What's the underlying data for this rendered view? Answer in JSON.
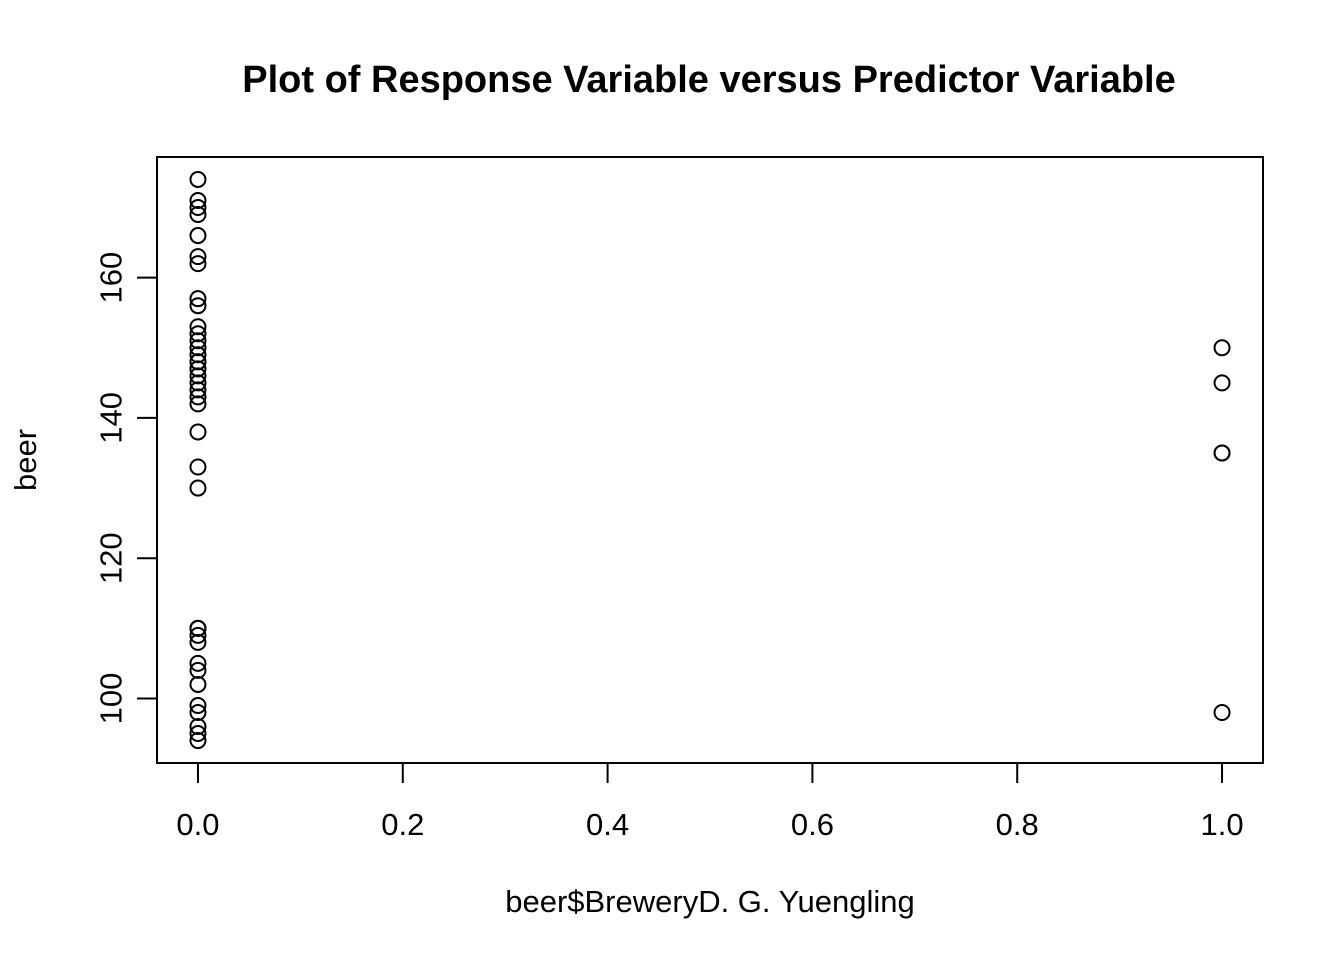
{
  "chart_data": {
    "type": "scatter",
    "title": "Plot of Response Variable versus Predictor Variable",
    "xlabel": "beer$BreweryD. G. Yuengling",
    "ylabel": "beer",
    "xlim": [
      -0.04,
      1.04
    ],
    "ylim": [
      90.8,
      177.2
    ],
    "x_ticks": [
      0.0,
      0.2,
      0.4,
      0.6,
      0.8,
      1.0
    ],
    "x_tick_labels": [
      "0.0",
      "0.2",
      "0.4",
      "0.6",
      "0.8",
      "1.0"
    ],
    "y_ticks": [
      100,
      120,
      140,
      160
    ],
    "y_tick_labels": [
      "100",
      "120",
      "140",
      "160"
    ],
    "grid": false,
    "legend": false,
    "marker": "open-circle",
    "series": [
      {
        "x": [
          0,
          0,
          0,
          0,
          0,
          0,
          0,
          0,
          0,
          0,
          0,
          0,
          0,
          0,
          0,
          0,
          0,
          0,
          0,
          0,
          0,
          0,
          0,
          0,
          0,
          0,
          0,
          0,
          0,
          0,
          0,
          0,
          0,
          0,
          0,
          0,
          0,
          0,
          0,
          1,
          1,
          1,
          1,
          1
        ],
        "y": [
          174,
          171,
          170,
          169,
          166,
          163,
          162,
          157,
          156,
          153,
          152,
          151,
          150,
          149,
          148,
          147,
          146,
          145,
          144,
          143,
          142,
          138,
          133,
          130,
          110,
          110,
          109,
          108,
          105,
          104,
          102,
          99,
          98,
          96,
          95,
          94,
          110,
          147,
          148,
          150,
          145,
          135,
          135,
          98
        ]
      }
    ]
  }
}
